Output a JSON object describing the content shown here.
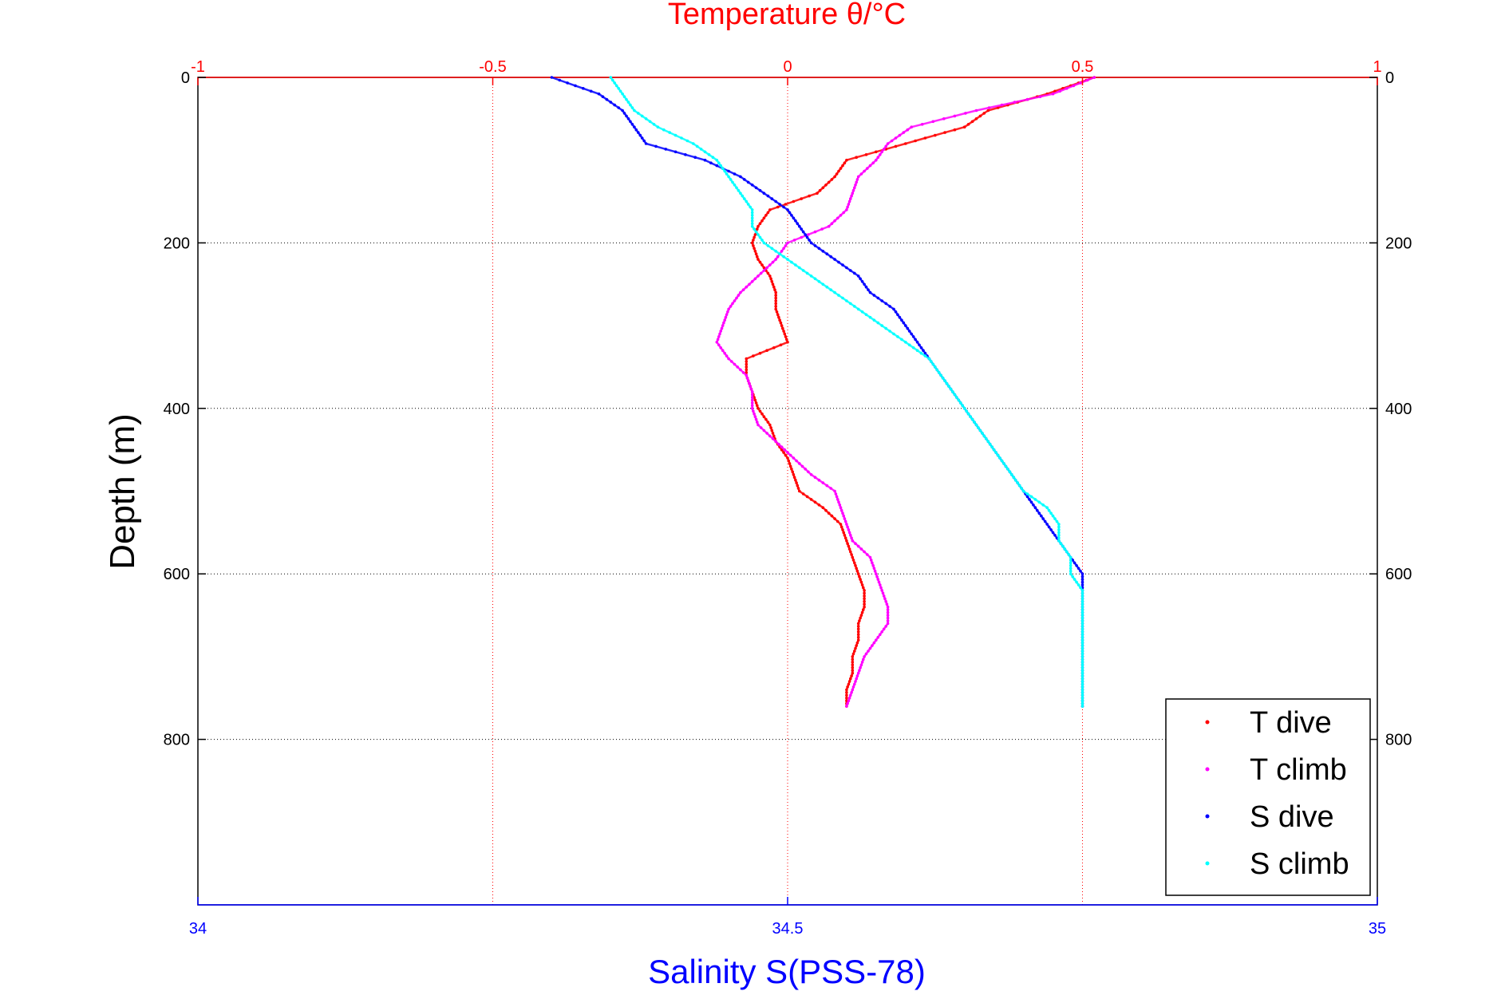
{
  "chart_data": {
    "type": "scatter",
    "title": "Temperature θ/°C",
    "xlabel": "Salinity S(PSS-78)",
    "ylabel": "Depth (m)",
    "top_axis": {
      "label": "Temperature θ/°C",
      "range": [
        -1,
        1
      ],
      "ticks": [
        "-1",
        "-0.5",
        "0",
        "0.5",
        "1"
      ],
      "color": "#ff0000"
    },
    "bottom_axis": {
      "label": "Salinity S(PSS-78)",
      "range": [
        34,
        35
      ],
      "ticks": [
        "34",
        "34.5",
        "35"
      ],
      "color": "#0000ff"
    },
    "y_axis": {
      "range": [
        0,
        1000
      ],
      "reversed": true,
      "ticks": [
        "0",
        "200",
        "400",
        "600",
        "800"
      ]
    },
    "grid": true,
    "legend_position": "bottom-right",
    "series": [
      {
        "name": "T dive",
        "axis": "temperature",
        "color": "#ff0000",
        "depth": [
          0,
          20,
          40,
          60,
          80,
          100,
          120,
          140,
          160,
          180,
          200,
          220,
          240,
          260,
          280,
          300,
          320,
          340,
          360,
          380,
          400,
          420,
          440,
          460,
          480,
          500,
          520,
          540,
          560,
          580,
          600,
          620,
          640,
          660,
          680,
          700,
          720,
          740,
          760
        ],
        "value": [
          0.52,
          0.44,
          0.34,
          0.3,
          0.2,
          0.1,
          0.08,
          0.05,
          -0.03,
          -0.05,
          -0.06,
          -0.05,
          -0.03,
          -0.02,
          -0.02,
          -0.01,
          0.0,
          -0.07,
          -0.07,
          -0.06,
          -0.05,
          -0.03,
          -0.02,
          0.0,
          0.01,
          0.02,
          0.06,
          0.09,
          0.1,
          0.11,
          0.12,
          0.13,
          0.13,
          0.12,
          0.12,
          0.11,
          0.11,
          0.1,
          0.1
        ]
      },
      {
        "name": "T climb",
        "axis": "temperature",
        "color": "#ff00ff",
        "depth": [
          0,
          20,
          40,
          60,
          80,
          100,
          120,
          140,
          160,
          180,
          200,
          220,
          240,
          260,
          280,
          300,
          320,
          340,
          360,
          380,
          400,
          420,
          440,
          460,
          480,
          500,
          520,
          540,
          560,
          580,
          600,
          620,
          640,
          660,
          680,
          700,
          720,
          740,
          760
        ],
        "value": [
          0.52,
          0.45,
          0.32,
          0.21,
          0.17,
          0.15,
          0.12,
          0.11,
          0.1,
          0.07,
          0.0,
          -0.02,
          -0.05,
          -0.08,
          -0.1,
          -0.11,
          -0.12,
          -0.1,
          -0.07,
          -0.06,
          -0.06,
          -0.05,
          -0.02,
          0.01,
          0.04,
          0.08,
          0.09,
          0.1,
          0.11,
          0.14,
          0.15,
          0.16,
          0.17,
          0.17,
          0.15,
          0.13,
          0.12,
          0.11,
          0.1
        ]
      },
      {
        "name": "S dive",
        "axis": "salinity",
        "color": "#0000ff",
        "depth": [
          0,
          20,
          40,
          60,
          80,
          100,
          120,
          140,
          160,
          180,
          200,
          220,
          240,
          260,
          280,
          300,
          320,
          340,
          360,
          380,
          400,
          420,
          440,
          460,
          480,
          500,
          520,
          540,
          560,
          580,
          600,
          620,
          640,
          660,
          680,
          700,
          720,
          740,
          760
        ],
        "value": [
          34.3,
          34.34,
          34.36,
          34.37,
          34.38,
          34.43,
          34.46,
          34.48,
          34.5,
          34.51,
          34.52,
          34.54,
          34.56,
          34.57,
          34.59,
          34.6,
          34.61,
          34.62,
          34.63,
          34.64,
          34.65,
          34.66,
          34.67,
          34.68,
          34.69,
          34.7,
          34.71,
          34.72,
          34.73,
          34.74,
          34.75,
          34.75,
          34.75,
          34.75,
          34.75,
          34.75,
          34.75,
          34.75,
          34.75
        ]
      },
      {
        "name": "S climb",
        "axis": "salinity",
        "color": "#00ffff",
        "depth": [
          0,
          20,
          40,
          60,
          80,
          100,
          120,
          140,
          160,
          180,
          200,
          220,
          240,
          260,
          280,
          300,
          320,
          340,
          360,
          380,
          400,
          420,
          440,
          460,
          480,
          500,
          520,
          540,
          560,
          580,
          600,
          620,
          640,
          660,
          680,
          700,
          720,
          740,
          760
        ],
        "value": [
          34.35,
          34.36,
          34.37,
          34.39,
          34.42,
          34.44,
          34.45,
          34.46,
          34.47,
          34.47,
          34.48,
          34.5,
          34.52,
          34.54,
          34.56,
          34.58,
          34.6,
          34.62,
          34.63,
          34.64,
          34.65,
          34.66,
          34.67,
          34.68,
          34.69,
          34.7,
          34.72,
          34.73,
          34.73,
          34.74,
          34.74,
          34.75,
          34.75,
          34.75,
          34.75,
          34.75,
          34.75,
          34.75,
          34.75
        ]
      }
    ]
  }
}
